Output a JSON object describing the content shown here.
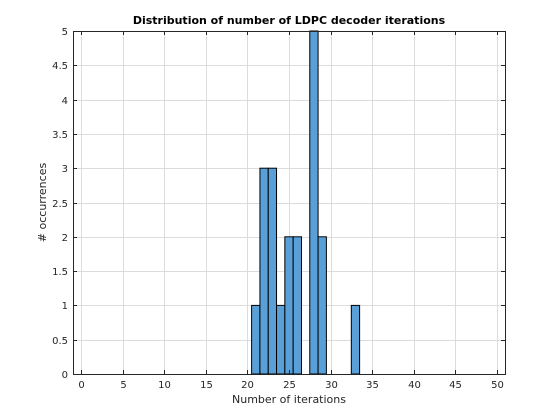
{
  "chart_data": {
    "type": "bar",
    "title": "Distribution of number of LDPC decoder iterations",
    "xlabel": "Number of iterations",
    "ylabel": "# occurrences",
    "xlim": [
      -1,
      51
    ],
    "ylim": [
      0,
      5
    ],
    "xticks": [
      0,
      5,
      10,
      15,
      20,
      25,
      30,
      35,
      40,
      45,
      50
    ],
    "yticks": [
      0,
      0.5,
      1,
      1.5,
      2,
      2.5,
      3,
      3.5,
      4,
      4.5,
      5
    ],
    "xtick_labels": [
      "0",
      "5",
      "10",
      "15",
      "20",
      "25",
      "30",
      "35",
      "40",
      "45",
      "50"
    ],
    "ytick_labels": [
      "0",
      "0.5",
      "1",
      "1.5",
      "2",
      "2.5",
      "3",
      "3.5",
      "4",
      "4.5",
      "5"
    ],
    "grid": true,
    "bar_color": "#5aa0d8",
    "bins": [
      {
        "x": 21,
        "value": 1
      },
      {
        "x": 22,
        "value": 3
      },
      {
        "x": 23,
        "value": 3
      },
      {
        "x": 24,
        "value": 1
      },
      {
        "x": 25,
        "value": 2
      },
      {
        "x": 26,
        "value": 2
      },
      {
        "x": 28,
        "value": 5
      },
      {
        "x": 29,
        "value": 2
      },
      {
        "x": 33,
        "value": 1
      }
    ]
  }
}
